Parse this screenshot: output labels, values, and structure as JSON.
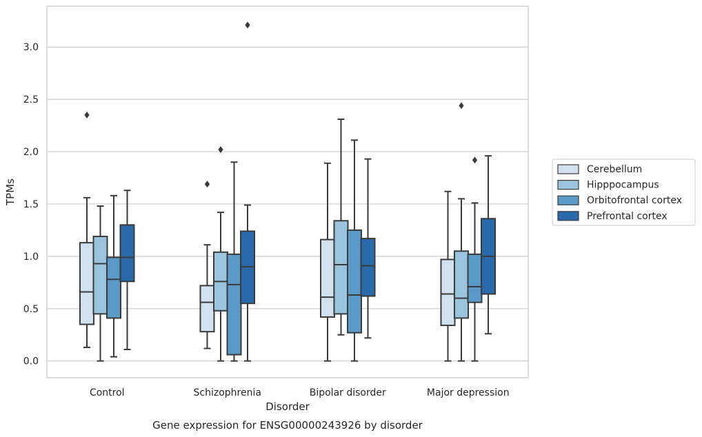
{
  "chart_data": {
    "type": "boxplot",
    "title": "Gene expression for ENSG00000243926 by disorder",
    "xlabel": "Disorder",
    "ylabel": "TPMs",
    "ylim": [
      -0.16,
      3.39
    ],
    "yticks": [
      "0.0",
      "0.5",
      "1.0",
      "1.5",
      "2.0",
      "2.5",
      "3.0"
    ],
    "ytick_values": [
      0,
      0.5,
      1.0,
      1.5,
      2.0,
      2.5,
      3.0
    ],
    "categories": [
      "Control",
      "Schizophrenia",
      "Bipolar disorder",
      "Major depression"
    ],
    "grid": "horizontal",
    "legend_position": "right",
    "series": [
      {
        "name": "Cerebellum",
        "color": "#d2e1f0",
        "boxes": [
          {
            "whislo": 0.13,
            "q1": 0.35,
            "med": 0.66,
            "q3": 1.13,
            "whishi": 1.56,
            "fliers": [
              2.35
            ]
          },
          {
            "whislo": 0.12,
            "q1": 0.28,
            "med": 0.56,
            "q3": 0.72,
            "whishi": 1.11,
            "fliers": [
              1.69
            ]
          },
          {
            "whislo": 0.0,
            "q1": 0.42,
            "med": 0.61,
            "q3": 1.16,
            "whishi": 1.89,
            "fliers": []
          },
          {
            "whislo": 0.0,
            "q1": 0.34,
            "med": 0.64,
            "q3": 0.97,
            "whishi": 1.62,
            "fliers": []
          }
        ]
      },
      {
        "name": "Hipppocampus",
        "color": "#9ac4de",
        "boxes": [
          {
            "whislo": 0.0,
            "q1": 0.45,
            "med": 0.93,
            "q3": 1.19,
            "whishi": 1.48,
            "fliers": []
          },
          {
            "whislo": 0.0,
            "q1": 0.48,
            "med": 0.76,
            "q3": 1.04,
            "whishi": 1.42,
            "fliers": [
              2.02
            ]
          },
          {
            "whislo": 0.25,
            "q1": 0.45,
            "med": 0.92,
            "q3": 1.34,
            "whishi": 2.31,
            "fliers": []
          },
          {
            "whislo": 0.0,
            "q1": 0.41,
            "med": 0.6,
            "q3": 1.05,
            "whishi": 1.55,
            "fliers": [
              2.44
            ]
          }
        ]
      },
      {
        "name": "Orbitofrontal cortex",
        "color": "#5a9ac8",
        "boxes": [
          {
            "whislo": 0.04,
            "q1": 0.41,
            "med": 0.78,
            "q3": 0.99,
            "whishi": 1.58,
            "fliers": []
          },
          {
            "whislo": 0.0,
            "q1": 0.06,
            "med": 0.73,
            "q3": 1.02,
            "whishi": 1.9,
            "fliers": []
          },
          {
            "whislo": 0.0,
            "q1": 0.27,
            "med": 0.63,
            "q3": 1.25,
            "whishi": 2.11,
            "fliers": []
          },
          {
            "whislo": 0.0,
            "q1": 0.56,
            "med": 0.71,
            "q3": 1.02,
            "whishi": 1.51,
            "fliers": [
              1.92
            ]
          }
        ]
      },
      {
        "name": "Prefrontal cortex",
        "color": "#2a6aac",
        "boxes": [
          {
            "whislo": 0.11,
            "q1": 0.76,
            "med": 0.99,
            "q3": 1.3,
            "whishi": 1.63,
            "fliers": []
          },
          {
            "whislo": 0.0,
            "q1": 0.55,
            "med": 0.9,
            "q3": 1.24,
            "whishi": 1.49,
            "fliers": [
              3.21
            ]
          },
          {
            "whislo": 0.22,
            "q1": 0.62,
            "med": 0.91,
            "q3": 1.17,
            "whishi": 1.93,
            "fliers": []
          },
          {
            "whislo": 0.26,
            "q1": 0.64,
            "med": 1.0,
            "q3": 1.36,
            "whishi": 1.96,
            "fliers": []
          }
        ]
      }
    ]
  }
}
